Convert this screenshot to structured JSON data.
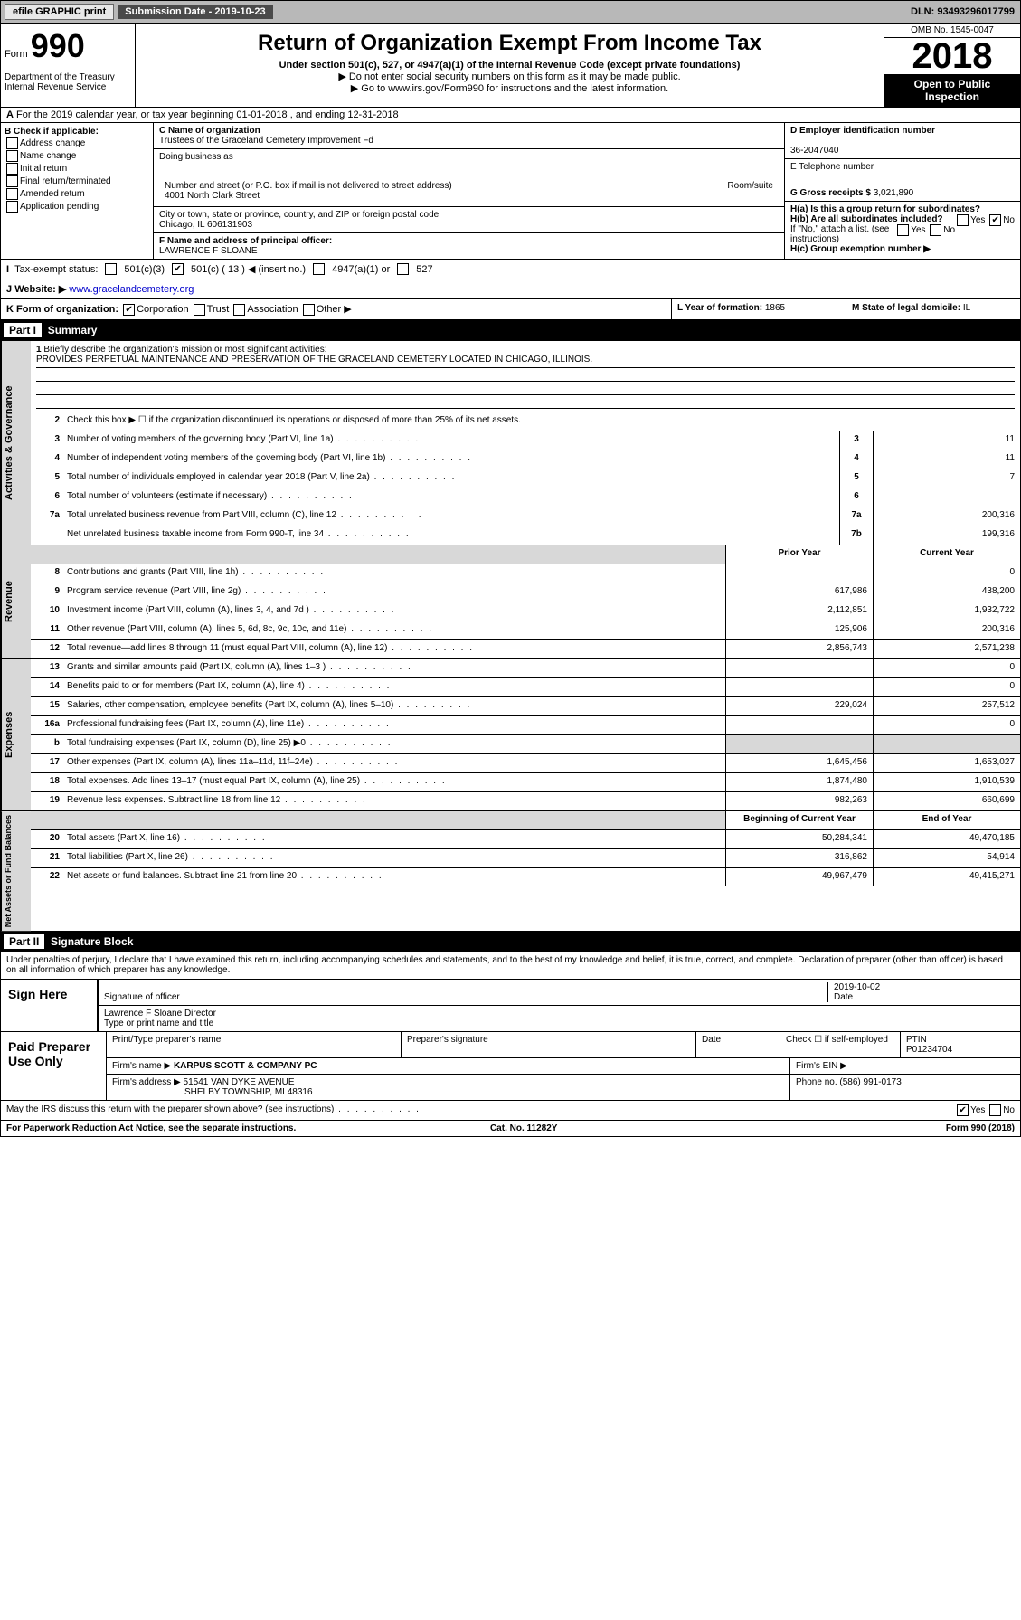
{
  "topbar": {
    "efile": "efile GRAPHIC print",
    "sub": "Submission Date - 2019-10-23",
    "dln": "DLN: 93493296017799"
  },
  "header": {
    "form": "Form",
    "num": "990",
    "dept": "Department of the Treasury\nInternal Revenue Service",
    "title": "Return of Organization Exempt From Income Tax",
    "sub1": "Under section 501(c), 527, or 4947(a)(1) of the Internal Revenue Code (except private foundations)",
    "sub2": "▶ Do not enter social security numbers on this form as it may be made public.",
    "sub3": "▶ Go to www.irs.gov/Form990 for instructions and the latest information.",
    "omb": "OMB No. 1545-0047",
    "year": "2018",
    "open": "Open to Public Inspection"
  },
  "A": {
    "text": "For the 2019 calendar year, or tax year beginning 01-01-2018   , and ending 12-31-2018"
  },
  "B": {
    "hdr": "B Check if applicable:",
    "items": [
      "Address change",
      "Name change",
      "Initial return",
      "Final return/terminated",
      "Amended return",
      "Application pending"
    ]
  },
  "C": {
    "lbl": "C Name of organization",
    "name": "Trustees of the Graceland Cemetery Improvement Fd",
    "dba_lbl": "Doing business as",
    "dba": "",
    "addr_lbl": "Number and street (or P.O. box if mail is not delivered to street address)",
    "room_lbl": "Room/suite",
    "addr": "4001 North Clark Street",
    "city_lbl": "City or town, state or province, country, and ZIP or foreign postal code",
    "city": "Chicago, IL  606131903"
  },
  "D": {
    "lbl": "D Employer identification number",
    "val": "36-2047040"
  },
  "E": {
    "lbl": "E Telephone number",
    "val": ""
  },
  "G": {
    "lbl": "G Gross receipts $",
    "val": "3,021,890"
  },
  "F": {
    "lbl": "F  Name and address of principal officer:",
    "val": "LAWRENCE F SLOANE"
  },
  "H": {
    "a": "H(a)  Is this a group return for subordinates?",
    "b": "H(b)  Are all subordinates included?",
    "b2": "If \"No,\" attach a list. (see instructions)",
    "c": "H(c)  Group exemption number ▶",
    "yes": "Yes",
    "no": "No"
  },
  "tax": {
    "lbl": "Tax-exempt status:",
    "c3": "501(c)(3)",
    "c": "501(c) ( 13 ) ◀ (insert no.)",
    "a1": "4947(a)(1) or",
    "s527": "527"
  },
  "J": {
    "lbl": "Website: ▶",
    "val": "www.gracelandcemetery.org"
  },
  "K": {
    "lbl": "K Form of organization:",
    "corp": "Corporation",
    "trust": "Trust",
    "assoc": "Association",
    "other": "Other ▶"
  },
  "L": {
    "lbl": "L Year of formation:",
    "val": "1865"
  },
  "M": {
    "lbl": "M State of legal domicile:",
    "val": "IL"
  },
  "part1": {
    "num": "Part I",
    "title": "Summary"
  },
  "s1": {
    "t": "Briefly describe the organization's mission or most significant activities:",
    "m": "PROVIDES PERPETUAL MAINTENANCE AND PRESERVATION OF THE GRACELAND CEMETERY LOCATED IN CHICAGO, ILLINOIS."
  },
  "s2": {
    "t": "Check this box ▶ ☐  if the organization discontinued its operations or disposed of more than 25% of its net assets."
  },
  "govRows": [
    {
      "n": "3",
      "t": "Number of voting members of the governing body (Part VI, line 1a)",
      "cn": "3",
      "v": "11"
    },
    {
      "n": "4",
      "t": "Number of independent voting members of the governing body (Part VI, line 1b)",
      "cn": "4",
      "v": "11"
    },
    {
      "n": "5",
      "t": "Total number of individuals employed in calendar year 2018 (Part V, line 2a)",
      "cn": "5",
      "v": "7"
    },
    {
      "n": "6",
      "t": "Total number of volunteers (estimate if necessary)",
      "cn": "6",
      "v": ""
    },
    {
      "n": "7a",
      "t": "Total unrelated business revenue from Part VIII, column (C), line 12",
      "cn": "7a",
      "v": "200,316"
    },
    {
      "n": "",
      "t": "Net unrelated business taxable income from Form 990-T, line 34",
      "cn": "7b",
      "v": "199,316"
    }
  ],
  "revHdr": {
    "c1": "Prior Year",
    "c2": "Current Year"
  },
  "revRows": [
    {
      "n": "8",
      "t": "Contributions and grants (Part VIII, line 1h)",
      "c1": "",
      "c2": "0"
    },
    {
      "n": "9",
      "t": "Program service revenue (Part VIII, line 2g)",
      "c1": "617,986",
      "c2": "438,200"
    },
    {
      "n": "10",
      "t": "Investment income (Part VIII, column (A), lines 3, 4, and 7d )",
      "c1": "2,112,851",
      "c2": "1,932,722"
    },
    {
      "n": "11",
      "t": "Other revenue (Part VIII, column (A), lines 5, 6d, 8c, 9c, 10c, and 11e)",
      "c1": "125,906",
      "c2": "200,316"
    },
    {
      "n": "12",
      "t": "Total revenue—add lines 8 through 11 (must equal Part VIII, column (A), line 12)",
      "c1": "2,856,743",
      "c2": "2,571,238"
    }
  ],
  "expRows": [
    {
      "n": "13",
      "t": "Grants and similar amounts paid (Part IX, column (A), lines 1–3 )",
      "c1": "",
      "c2": "0"
    },
    {
      "n": "14",
      "t": "Benefits paid to or for members (Part IX, column (A), line 4)",
      "c1": "",
      "c2": "0"
    },
    {
      "n": "15",
      "t": "Salaries, other compensation, employee benefits (Part IX, column (A), lines 5–10)",
      "c1": "229,024",
      "c2": "257,512"
    },
    {
      "n": "16a",
      "t": "Professional fundraising fees (Part IX, column (A), line 11e)",
      "c1": "",
      "c2": "0"
    },
    {
      "n": "b",
      "t": "Total fundraising expenses (Part IX, column (D), line 25) ▶0",
      "c1gray": true,
      "c2gray": true
    },
    {
      "n": "17",
      "t": "Other expenses (Part IX, column (A), lines 11a–11d, 11f–24e)",
      "c1": "1,645,456",
      "c2": "1,653,027"
    },
    {
      "n": "18",
      "t": "Total expenses. Add lines 13–17 (must equal Part IX, column (A), line 25)",
      "c1": "1,874,480",
      "c2": "1,910,539"
    },
    {
      "n": "19",
      "t": "Revenue less expenses. Subtract line 18 from line 12",
      "c1": "982,263",
      "c2": "660,699"
    }
  ],
  "netHdr": {
    "c1": "Beginning of Current Year",
    "c2": "End of Year"
  },
  "netRows": [
    {
      "n": "20",
      "t": "Total assets (Part X, line 16)",
      "c1": "50,284,341",
      "c2": "49,470,185"
    },
    {
      "n": "21",
      "t": "Total liabilities (Part X, line 26)",
      "c1": "316,862",
      "c2": "54,914"
    },
    {
      "n": "22",
      "t": "Net assets or fund balances. Subtract line 21 from line 20",
      "c1": "49,967,479",
      "c2": "49,415,271"
    }
  ],
  "part2": {
    "num": "Part II",
    "title": "Signature Block"
  },
  "perjury": "Under penalties of perjury, I declare that I have examined this return, including accompanying schedules and statements, and to the best of my knowledge and belief, it is true, correct, and complete. Declaration of preparer (other than officer) is based on all information of which preparer has any knowledge.",
  "sign": {
    "lbl": "Sign Here",
    "sig": "Signature of officer",
    "date": "2019-10-02",
    "datelbl": "Date",
    "name": "Lawrence F Sloane  Director",
    "namelbl": "Type or print name and title"
  },
  "paid": {
    "lbl": "Paid Preparer Use Only",
    "h1": "Print/Type preparer's name",
    "h2": "Preparer's signature",
    "h3": "Date",
    "h4": "Check ☐ if self-employed",
    "h5": "PTIN",
    "ptin": "P01234704",
    "firm_lbl": "Firm's name   ▶",
    "firm": "KARPUS SCOTT & COMPANY PC",
    "ein_lbl": "Firm's EIN ▶",
    "addr_lbl": "Firm's address ▶",
    "addr": "51541 VAN DYKE AVENUE",
    "addr2": "SHELBY TOWNSHIP, MI  48316",
    "ph_lbl": "Phone no.",
    "ph": "(586) 991-0173"
  },
  "discuss": {
    "t": "May the IRS discuss this return with the preparer shown above? (see instructions)",
    "yes": "Yes",
    "no": "No"
  },
  "foot": {
    "l": "For Paperwork Reduction Act Notice, see the separate instructions.",
    "m": "Cat. No. 11282Y",
    "r": "Form 990 (2018)"
  },
  "vtabs": {
    "gov": "Activities & Governance",
    "rev": "Revenue",
    "exp": "Expenses",
    "net": "Net Assets or Fund Balances"
  }
}
